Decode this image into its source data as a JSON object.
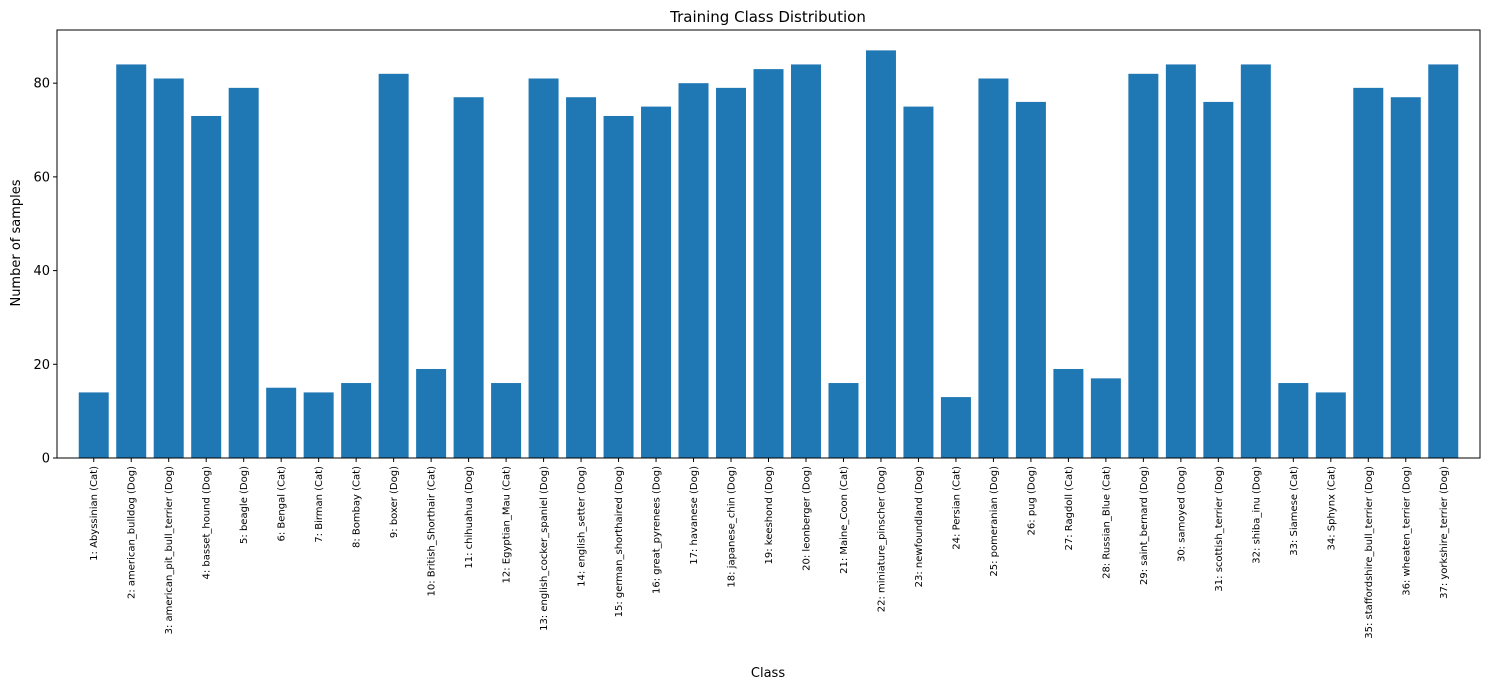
{
  "chart_data": {
    "type": "bar",
    "title": "Training Class Distribution",
    "xlabel": "Class",
    "ylabel": "Number of samples",
    "ylim": [
      0,
      91.35
    ],
    "yticks": [
      0,
      20,
      40,
      60,
      80
    ],
    "grid": false,
    "bar_color": "#1f77b4",
    "categories": [
      "1: Abyssinian (Cat)",
      "2: american_bulldog (Dog)",
      "3: american_pit_bull_terrier (Dog)",
      "4: basset_hound (Dog)",
      "5: beagle (Dog)",
      "6: Bengal (Cat)",
      "7: Birman (Cat)",
      "8: Bombay (Cat)",
      "9: boxer (Dog)",
      "10: British_Shorthair (Cat)",
      "11: chihuahua (Dog)",
      "12: Egyptian_Mau (Cat)",
      "13: english_cocker_spaniel (Dog)",
      "14: english_setter (Dog)",
      "15: german_shorthaired (Dog)",
      "16: great_pyrenees (Dog)",
      "17: havanese (Dog)",
      "18: japanese_chin (Dog)",
      "19: keeshond (Dog)",
      "20: leonberger (Dog)",
      "21: Maine_Coon (Cat)",
      "22: miniature_pinscher (Dog)",
      "23: newfoundland (Dog)",
      "24: Persian (Cat)",
      "25: pomeranian (Dog)",
      "26: pug (Dog)",
      "27: Ragdoll (Cat)",
      "28: Russian_Blue (Cat)",
      "29: saint_bernard (Dog)",
      "30: samoyed (Dog)",
      "31: scottish_terrier (Dog)",
      "32: shiba_inu (Dog)",
      "33: Siamese (Cat)",
      "34: Sphynx (Cat)",
      "35: staffordshire_bull_terrier (Dog)",
      "36: wheaten_terrier (Dog)",
      "37: yorkshire_terrier (Dog)"
    ],
    "values": [
      14,
      84,
      81,
      73,
      79,
      15,
      14,
      16,
      82,
      19,
      77,
      16,
      81,
      77,
      73,
      75,
      80,
      79,
      83,
      84,
      16,
      87,
      75,
      13,
      81,
      76,
      19,
      17,
      82,
      84,
      76,
      84,
      16,
      14,
      79,
      77,
      84
    ]
  }
}
